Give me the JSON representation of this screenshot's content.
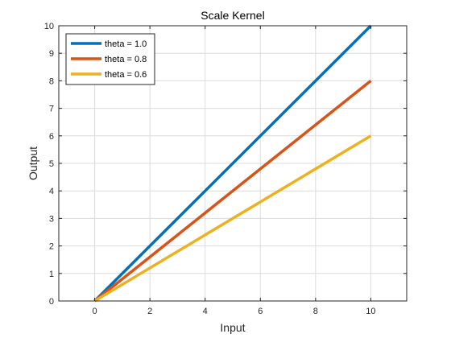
{
  "chart_data": {
    "type": "line",
    "title": "Scale Kernel",
    "xlabel": "Input",
    "ylabel": "Output",
    "xlim": [
      -1.3,
      11.3
    ],
    "ylim": [
      0,
      10
    ],
    "xticks": [
      0,
      2,
      4,
      6,
      8,
      10
    ],
    "yticks": [
      0,
      1,
      2,
      3,
      4,
      5,
      6,
      7,
      8,
      9,
      10
    ],
    "grid": true,
    "legend_position": "top-left",
    "series": [
      {
        "name": "theta = 1.0",
        "color": "#0072BD",
        "x": [
          0,
          10
        ],
        "y": [
          0,
          10
        ]
      },
      {
        "name": "theta = 0.8",
        "color": "#D95319",
        "x": [
          0,
          10
        ],
        "y": [
          0,
          8
        ]
      },
      {
        "name": "theta = 0.6",
        "color": "#EDB120",
        "x": [
          0,
          10
        ],
        "y": [
          0,
          6
        ]
      }
    ]
  }
}
